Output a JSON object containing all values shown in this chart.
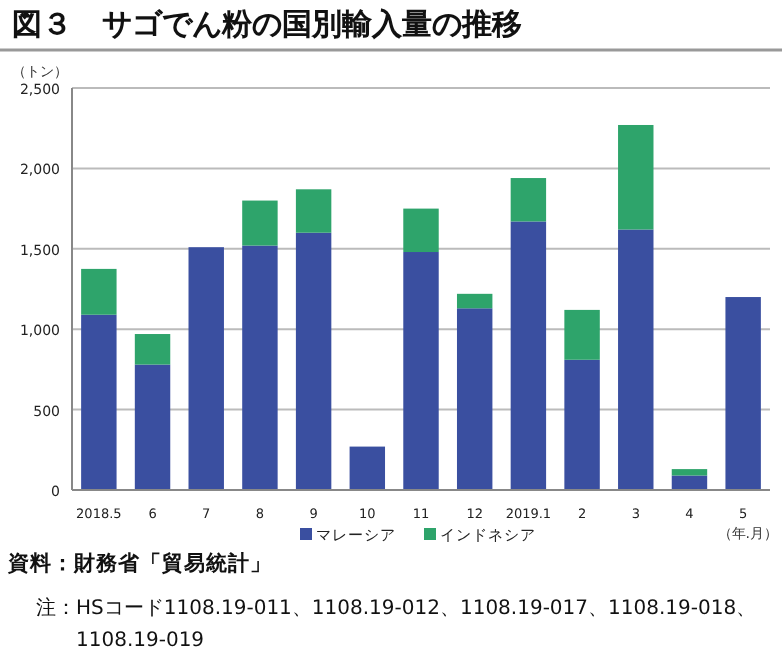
{
  "chart_data": {
    "type": "bar",
    "stacked": true,
    "title": "図３　サゴでん粉の国別輸入量の推移",
    "ylabel": "（トン）",
    "xlabel": "（年.月）",
    "categories": [
      "2018.5",
      "6",
      "7",
      "8",
      "9",
      "10",
      "11",
      "12",
      "2019.1",
      "2",
      "3",
      "4",
      "5"
    ],
    "series": [
      {
        "name": "マレーシア",
        "color": "#3a4fa0",
        "values": [
          1090,
          780,
          1510,
          1520,
          1600,
          270,
          1480,
          1130,
          1670,
          810,
          1620,
          90,
          1200
        ]
      },
      {
        "name": "インドネシア",
        "color": "#2ea46b",
        "values": [
          285,
          190,
          0,
          280,
          270,
          0,
          270,
          90,
          270,
          310,
          650,
          40,
          0
        ]
      }
    ],
    "ylim": [
      0,
      2500
    ],
    "yticks": [
      {
        "value": 0,
        "label": "0"
      },
      {
        "value": 500,
        "label": "500"
      },
      {
        "value": 1000,
        "label": "1,000"
      },
      {
        "value": 1500,
        "label": "1,500"
      },
      {
        "value": 2000,
        "label": "2,000"
      },
      {
        "value": 2500,
        "label": "2,500"
      }
    ],
    "grid": "y",
    "legend": "bottom",
    "annotations": [
      "資料：財務省「貿易統計」",
      "注：HSコード1108.19-011、1108.19-012、1108.19-017、1108.19-018、1108.19-019"
    ]
  }
}
